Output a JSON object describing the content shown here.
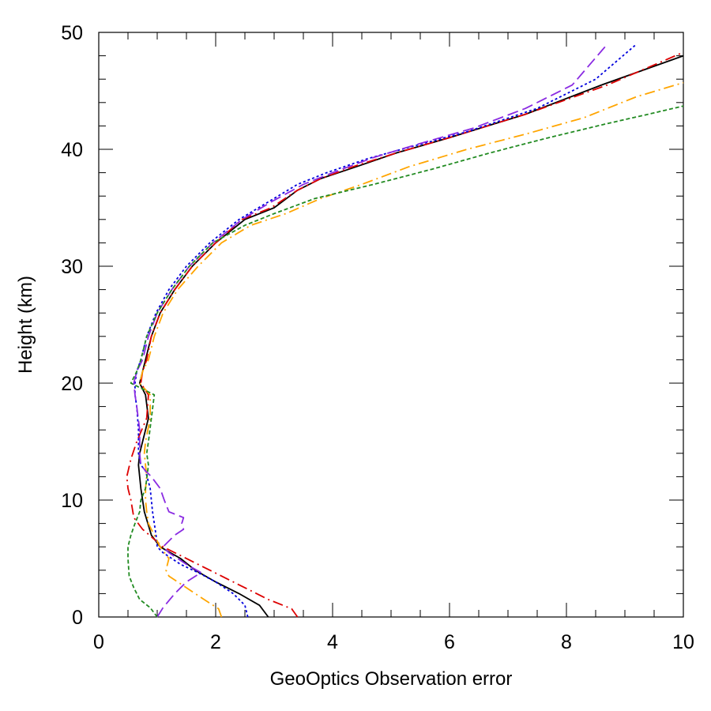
{
  "chart_data": {
    "type": "line",
    "title": "",
    "xlabel": "GeoOptics Observation error",
    "ylabel": "Height (km)",
    "xlim": [
      0,
      10
    ],
    "ylim": [
      0,
      50
    ],
    "xticks": [
      "0",
      "2",
      "4",
      "6",
      "8",
      "10"
    ],
    "yticks": [
      "0",
      "10",
      "20",
      "30",
      "40",
      "50"
    ],
    "grid": false,
    "legend": "none",
    "series": [
      {
        "color": "#000000",
        "dash": "solid",
        "points": [
          [
            2.9,
            0
          ],
          [
            2.75,
            1
          ],
          [
            2.4,
            2
          ],
          [
            2.0,
            3
          ],
          [
            1.65,
            4
          ],
          [
            1.4,
            5
          ],
          [
            1.05,
            6
          ],
          [
            0.9,
            7
          ],
          [
            0.78,
            9
          ],
          [
            0.72,
            11
          ],
          [
            0.68,
            13
          ],
          [
            0.7,
            14
          ],
          [
            0.75,
            15
          ],
          [
            0.85,
            17
          ],
          [
            0.8,
            19
          ],
          [
            0.7,
            20
          ],
          [
            0.75,
            21
          ],
          [
            0.8,
            22
          ],
          [
            0.9,
            24
          ],
          [
            1.05,
            26
          ],
          [
            1.3,
            28
          ],
          [
            1.6,
            30
          ],
          [
            2.0,
            32
          ],
          [
            2.5,
            34
          ],
          [
            3.0,
            35
          ],
          [
            3.4,
            36.5
          ],
          [
            3.8,
            37.5
          ],
          [
            4.4,
            38.5
          ],
          [
            5.1,
            39.7
          ],
          [
            6.0,
            41
          ],
          [
            7.3,
            43
          ],
          [
            8.6,
            45.5
          ],
          [
            10.0,
            48
          ]
        ]
      },
      {
        "color": "#dd0000",
        "dash": "dash-dot",
        "points": [
          [
            3.4,
            0
          ],
          [
            3.3,
            0.7
          ],
          [
            2.9,
            1.5
          ],
          [
            2.3,
            3
          ],
          [
            1.7,
            4.5
          ],
          [
            1.1,
            6
          ],
          [
            0.75,
            7.5
          ],
          [
            0.6,
            8.5
          ],
          [
            0.55,
            10
          ],
          [
            0.5,
            11
          ],
          [
            0.48,
            12
          ],
          [
            0.55,
            13.5
          ],
          [
            0.65,
            15
          ],
          [
            0.82,
            17
          ],
          [
            0.85,
            19
          ],
          [
            0.72,
            20
          ],
          [
            0.75,
            21
          ],
          [
            0.82,
            22
          ],
          [
            0.9,
            24
          ],
          [
            1.05,
            26
          ],
          [
            1.3,
            28
          ],
          [
            1.6,
            30
          ],
          [
            2.0,
            32
          ],
          [
            2.45,
            34
          ],
          [
            2.95,
            35
          ],
          [
            3.4,
            36.5
          ],
          [
            3.8,
            37.5
          ],
          [
            4.4,
            38.6
          ],
          [
            5.1,
            39.7
          ],
          [
            6.0,
            41
          ],
          [
            7.3,
            43
          ],
          [
            8.7,
            45.5
          ],
          [
            10.0,
            48.3
          ]
        ]
      },
      {
        "color": "#0000dd",
        "dash": "dotted",
        "points": [
          [
            2.55,
            0
          ],
          [
            2.5,
            1
          ],
          [
            2.3,
            2
          ],
          [
            2.0,
            3
          ],
          [
            1.7,
            3.8
          ],
          [
            1.4,
            4.5
          ],
          [
            1.1,
            5.5
          ],
          [
            1.0,
            6
          ],
          [
            0.98,
            7
          ],
          [
            0.92,
            9
          ],
          [
            0.88,
            11
          ],
          [
            0.8,
            12.5
          ],
          [
            0.72,
            13
          ],
          [
            0.68,
            14
          ],
          [
            0.68,
            16
          ],
          [
            0.65,
            18
          ],
          [
            0.62,
            19
          ],
          [
            0.62,
            20
          ],
          [
            0.65,
            21
          ],
          [
            0.72,
            22
          ],
          [
            0.82,
            24
          ],
          [
            0.98,
            26
          ],
          [
            1.2,
            28
          ],
          [
            1.5,
            30
          ],
          [
            1.9,
            32
          ],
          [
            2.4,
            34
          ],
          [
            2.9,
            35.5
          ],
          [
            3.4,
            37
          ],
          [
            3.9,
            38
          ],
          [
            4.6,
            39.2
          ],
          [
            5.4,
            40.3
          ],
          [
            6.3,
            41.5
          ],
          [
            7.5,
            43.5
          ],
          [
            8.5,
            46
          ],
          [
            9.2,
            49
          ]
        ]
      },
      {
        "color": "#ffa500",
        "dash": "dash-dot",
        "points": [
          [
            2.1,
            0
          ],
          [
            2.05,
            0.7
          ],
          [
            1.8,
            1.5
          ],
          [
            1.5,
            2.5
          ],
          [
            1.2,
            3.5
          ],
          [
            1.15,
            4
          ],
          [
            1.2,
            5
          ],
          [
            1.05,
            6
          ],
          [
            0.95,
            7
          ],
          [
            0.85,
            8
          ],
          [
            0.82,
            9
          ],
          [
            0.8,
            10
          ],
          [
            0.8,
            11
          ],
          [
            0.82,
            12
          ],
          [
            0.8,
            13
          ],
          [
            0.78,
            14
          ],
          [
            0.8,
            15
          ],
          [
            0.88,
            17
          ],
          [
            0.88,
            19
          ],
          [
            0.7,
            20
          ],
          [
            0.75,
            21
          ],
          [
            0.85,
            22
          ],
          [
            0.95,
            24
          ],
          [
            1.1,
            26
          ],
          [
            1.35,
            28
          ],
          [
            1.7,
            30
          ],
          [
            2.1,
            32
          ],
          [
            2.6,
            33.5
          ],
          [
            3.2,
            34.5
          ],
          [
            3.8,
            35.8
          ],
          [
            4.5,
            37
          ],
          [
            5.3,
            38.5
          ],
          [
            6.3,
            40
          ],
          [
            7.3,
            41.3
          ],
          [
            8.3,
            42.7
          ],
          [
            9.2,
            44.5
          ],
          [
            10.0,
            45.7
          ]
        ]
      },
      {
        "color": "#8a2be2",
        "dash": "long-dash",
        "points": [
          [
            1.0,
            0
          ],
          [
            1.1,
            0.8
          ],
          [
            1.3,
            2
          ],
          [
            1.5,
            3
          ],
          [
            1.75,
            3.8
          ],
          [
            1.5,
            4.5
          ],
          [
            1.2,
            5.5
          ],
          [
            1.1,
            6
          ],
          [
            1.3,
            7
          ],
          [
            1.45,
            7.5
          ],
          [
            1.42,
            8
          ],
          [
            1.45,
            8.5
          ],
          [
            1.2,
            9
          ],
          [
            1.12,
            10
          ],
          [
            1.05,
            11
          ],
          [
            0.9,
            12
          ],
          [
            0.8,
            12.5
          ],
          [
            0.72,
            13
          ],
          [
            0.7,
            14
          ],
          [
            0.7,
            15
          ],
          [
            0.7,
            16
          ],
          [
            0.65,
            18
          ],
          [
            0.62,
            19
          ],
          [
            0.6,
            20
          ],
          [
            0.65,
            21
          ],
          [
            0.75,
            22
          ],
          [
            0.85,
            24
          ],
          [
            1.0,
            26
          ],
          [
            1.25,
            28
          ],
          [
            1.55,
            30
          ],
          [
            1.95,
            32
          ],
          [
            2.45,
            34
          ],
          [
            2.95,
            35.5
          ],
          [
            3.5,
            37
          ],
          [
            4.0,
            38
          ],
          [
            4.7,
            39.3
          ],
          [
            5.5,
            40.5
          ],
          [
            6.4,
            41.8
          ],
          [
            7.3,
            43.5
          ],
          [
            8.1,
            45.5
          ],
          [
            8.7,
            49
          ]
        ]
      },
      {
        "color": "#228b22",
        "dash": "short-dash",
        "points": [
          [
            1.0,
            0
          ],
          [
            0.88,
            0.8
          ],
          [
            0.7,
            1.5
          ],
          [
            0.6,
            2.5
          ],
          [
            0.52,
            3.5
          ],
          [
            0.5,
            5
          ],
          [
            0.5,
            6
          ],
          [
            0.55,
            7
          ],
          [
            0.62,
            8
          ],
          [
            0.7,
            9
          ],
          [
            0.72,
            10
          ],
          [
            0.8,
            11
          ],
          [
            0.85,
            13
          ],
          [
            0.82,
            14
          ],
          [
            0.85,
            15
          ],
          [
            0.9,
            17
          ],
          [
            0.95,
            19
          ],
          [
            0.55,
            20
          ],
          [
            0.65,
            21
          ],
          [
            0.72,
            22
          ],
          [
            0.82,
            24
          ],
          [
            1.0,
            26
          ],
          [
            1.25,
            28
          ],
          [
            1.55,
            30
          ],
          [
            1.95,
            32
          ],
          [
            2.5,
            33.5
          ],
          [
            3.0,
            34.5
          ],
          [
            3.7,
            35.8
          ],
          [
            4.7,
            37
          ],
          [
            5.7,
            38.3
          ],
          [
            6.7,
            39.7
          ],
          [
            7.7,
            41
          ],
          [
            8.7,
            42.2
          ],
          [
            9.4,
            43
          ],
          [
            10.0,
            43.7
          ]
        ]
      }
    ]
  }
}
